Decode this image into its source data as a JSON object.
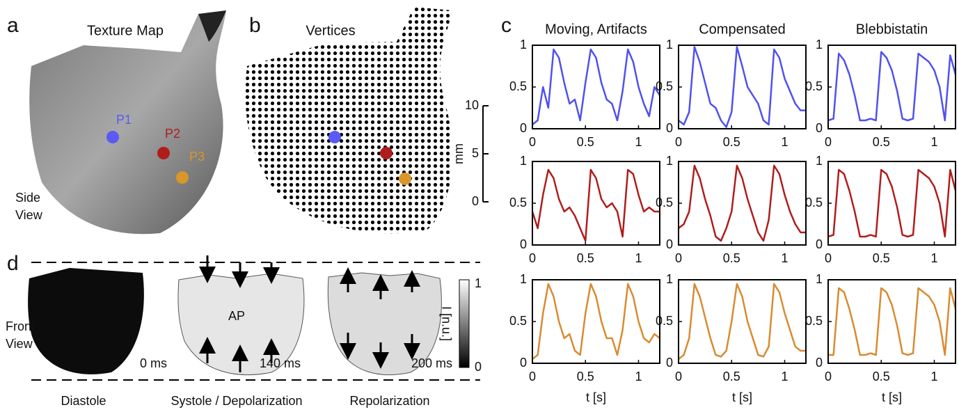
{
  "figure": {
    "panel_labels": [
      "a",
      "b",
      "c",
      "d"
    ],
    "a": {
      "title": "Texture Map",
      "points": [
        "P1",
        "P2",
        "P3"
      ],
      "view": [
        "Side",
        "View"
      ]
    },
    "b": {
      "title": "Vertices",
      "scale_ticks": [
        10,
        5,
        0
      ],
      "scale_unit": "mm"
    },
    "d": {
      "view": [
        "Front",
        "View"
      ],
      "times": [
        "0 ms",
        "140 ms",
        "200 ms"
      ],
      "ap": "AP",
      "phases": [
        "Diastole",
        "Systole / Depolarization",
        "Repolarization"
      ],
      "colorbar_ticks": [
        1,
        0
      ],
      "colorbar_label": "I [n.u.]"
    }
  },
  "chart_data": [
    {
      "type": "line",
      "title": "Moving, Artifacts",
      "x": [
        0,
        0.05,
        0.1,
        0.15,
        0.2,
        0.25,
        0.3,
        0.35,
        0.4,
        0.45,
        0.5,
        0.55,
        0.6,
        0.65,
        0.7,
        0.75,
        0.8,
        0.85,
        0.9,
        0.95,
        1.0,
        1.05,
        1.1,
        1.15,
        1.2
      ],
      "series": [
        {
          "color": "#5050f0",
          "values": [
            0.05,
            0.1,
            0.5,
            0.25,
            0.95,
            0.85,
            0.55,
            0.3,
            0.35,
            0.1,
            0.55,
            0.95,
            0.85,
            0.55,
            0.35,
            0.3,
            0.1,
            0.45,
            0.95,
            0.8,
            0.5,
            0.3,
            0.15,
            0.5,
            0.4
          ]
        }
      ],
      "xlim": [
        0,
        1.2
      ],
      "ylim": [
        0,
        1
      ],
      "xticks": [
        0,
        0.5,
        1
      ],
      "yticks": [
        0,
        0.5,
        1
      ]
    },
    {
      "type": "line",
      "title": "Compensated",
      "x": [
        0,
        0.05,
        0.1,
        0.15,
        0.2,
        0.25,
        0.3,
        0.35,
        0.4,
        0.45,
        0.5,
        0.55,
        0.6,
        0.65,
        0.7,
        0.75,
        0.8,
        0.85,
        0.9,
        0.95,
        1.0,
        1.05,
        1.1,
        1.15,
        1.2
      ],
      "series": [
        {
          "color": "#5050f0",
          "values": [
            0.1,
            0.05,
            0.2,
            0.98,
            0.8,
            0.55,
            0.3,
            0.25,
            0.1,
            0.02,
            0.2,
            0.98,
            0.75,
            0.5,
            0.4,
            0.3,
            0.1,
            0.05,
            0.95,
            0.85,
            0.6,
            0.45,
            0.3,
            0.22,
            0.22
          ]
        }
      ],
      "xlim": [
        0,
        1.2
      ],
      "ylim": [
        0,
        1
      ],
      "xticks": [
        0,
        0.5,
        1
      ],
      "yticks": [
        0,
        0.5,
        1
      ]
    },
    {
      "type": "line",
      "title": "Blebbistatin",
      "x": [
        0,
        0.05,
        0.1,
        0.15,
        0.2,
        0.25,
        0.3,
        0.35,
        0.4,
        0.45,
        0.5,
        0.55,
        0.6,
        0.65,
        0.7,
        0.75,
        0.8,
        0.85,
        0.9,
        0.95,
        1.0,
        1.05,
        1.1,
        1.15,
        1.2
      ],
      "series": [
        {
          "color": "#5050f0",
          "values": [
            0.1,
            0.12,
            0.9,
            0.82,
            0.65,
            0.4,
            0.1,
            0.1,
            0.12,
            0.1,
            0.92,
            0.85,
            0.7,
            0.45,
            0.12,
            0.1,
            0.12,
            0.9,
            0.85,
            0.8,
            0.7,
            0.5,
            0.1,
            0.88,
            0.65
          ]
        }
      ],
      "xlim": [
        0,
        1.2
      ],
      "ylim": [
        0,
        1
      ],
      "xticks": [
        0,
        0.5,
        1
      ],
      "yticks": [
        0,
        0.5,
        1
      ]
    },
    {
      "type": "line",
      "x": [
        0,
        0.05,
        0.1,
        0.15,
        0.2,
        0.25,
        0.3,
        0.35,
        0.4,
        0.45,
        0.5,
        0.55,
        0.6,
        0.65,
        0.7,
        0.75,
        0.8,
        0.85,
        0.9,
        0.95,
        1.0,
        1.05,
        1.1,
        1.15,
        1.2
      ],
      "series": [
        {
          "color": "#b01c1c",
          "values": [
            0.4,
            0.2,
            0.6,
            0.9,
            0.8,
            0.55,
            0.4,
            0.45,
            0.35,
            0.2,
            0.05,
            0.9,
            0.8,
            0.55,
            0.45,
            0.5,
            0.4,
            0.1,
            0.9,
            0.85,
            0.6,
            0.4,
            0.45,
            0.4,
            0.4
          ]
        }
      ],
      "xlim": [
        0,
        1.2
      ],
      "ylim": [
        0,
        1
      ],
      "xticks": [
        0,
        0.5,
        1
      ],
      "yticks": [
        0,
        0.5,
        1
      ]
    },
    {
      "type": "line",
      "x": [
        0,
        0.05,
        0.1,
        0.15,
        0.2,
        0.25,
        0.3,
        0.35,
        0.4,
        0.45,
        0.5,
        0.55,
        0.6,
        0.65,
        0.7,
        0.75,
        0.8,
        0.85,
        0.9,
        0.95,
        1.0,
        1.05,
        1.1,
        1.15,
        1.2
      ],
      "series": [
        {
          "color": "#b01c1c",
          "values": [
            0.2,
            0.25,
            0.4,
            0.95,
            0.8,
            0.55,
            0.35,
            0.1,
            0.05,
            0.2,
            0.4,
            0.95,
            0.8,
            0.55,
            0.35,
            0.15,
            0.05,
            0.3,
            0.95,
            0.85,
            0.6,
            0.4,
            0.25,
            0.15,
            0.15
          ]
        }
      ],
      "xlim": [
        0,
        1.2
      ],
      "ylim": [
        0,
        1
      ],
      "xticks": [
        0,
        0.5,
        1
      ],
      "yticks": [
        0,
        0.5,
        1
      ]
    },
    {
      "type": "line",
      "x": [
        0,
        0.05,
        0.1,
        0.15,
        0.2,
        0.25,
        0.3,
        0.35,
        0.4,
        0.45,
        0.5,
        0.55,
        0.6,
        0.65,
        0.7,
        0.75,
        0.8,
        0.85,
        0.9,
        0.95,
        1.0,
        1.05,
        1.1,
        1.15,
        1.2
      ],
      "series": [
        {
          "color": "#b01c1c",
          "values": [
            0.1,
            0.12,
            0.9,
            0.85,
            0.65,
            0.4,
            0.1,
            0.1,
            0.12,
            0.1,
            0.9,
            0.85,
            0.7,
            0.45,
            0.12,
            0.1,
            0.12,
            0.9,
            0.85,
            0.8,
            0.7,
            0.5,
            0.1,
            0.9,
            0.65
          ]
        }
      ],
      "xlim": [
        0,
        1.2
      ],
      "ylim": [
        0,
        1
      ],
      "xticks": [
        0,
        0.5,
        1
      ],
      "yticks": [
        0,
        0.5,
        1
      ]
    },
    {
      "type": "line",
      "xlabel": "t [s]",
      "x": [
        0,
        0.05,
        0.1,
        0.15,
        0.2,
        0.25,
        0.3,
        0.35,
        0.4,
        0.45,
        0.5,
        0.55,
        0.6,
        0.65,
        0.7,
        0.75,
        0.8,
        0.85,
        0.9,
        0.95,
        1.0,
        1.05,
        1.1,
        1.15,
        1.2
      ],
      "series": [
        {
          "color": "#d98a30",
          "values": [
            0.05,
            0.1,
            0.6,
            0.95,
            0.8,
            0.5,
            0.3,
            0.35,
            0.15,
            0.1,
            0.6,
            0.95,
            0.8,
            0.5,
            0.3,
            0.3,
            0.1,
            0.4,
            0.95,
            0.8,
            0.5,
            0.3,
            0.25,
            0.35,
            0.3
          ]
        }
      ],
      "xlim": [
        0,
        1.2
      ],
      "ylim": [
        0,
        1
      ],
      "xticks": [
        0,
        0.5,
        1
      ],
      "yticks": [
        0,
        0.5,
        1
      ]
    },
    {
      "type": "line",
      "xlabel": "t [s]",
      "x": [
        0,
        0.05,
        0.1,
        0.15,
        0.2,
        0.25,
        0.3,
        0.35,
        0.4,
        0.45,
        0.5,
        0.55,
        0.6,
        0.65,
        0.7,
        0.75,
        0.8,
        0.85,
        0.9,
        0.95,
        1.0,
        1.05,
        1.1,
        1.15,
        1.2
      ],
      "series": [
        {
          "color": "#d98a30",
          "values": [
            0.05,
            0.1,
            0.3,
            0.95,
            0.8,
            0.55,
            0.3,
            0.1,
            0.08,
            0.15,
            0.5,
            0.95,
            0.8,
            0.5,
            0.3,
            0.1,
            0.08,
            0.2,
            0.95,
            0.85,
            0.6,
            0.4,
            0.2,
            0.15,
            0.15
          ]
        }
      ],
      "xlim": [
        0,
        1.2
      ],
      "ylim": [
        0,
        1
      ],
      "xticks": [
        0,
        0.5,
        1
      ],
      "yticks": [
        0,
        0.5,
        1
      ]
    },
    {
      "type": "line",
      "xlabel": "t [s]",
      "x": [
        0,
        0.05,
        0.1,
        0.15,
        0.2,
        0.25,
        0.3,
        0.35,
        0.4,
        0.45,
        0.5,
        0.55,
        0.6,
        0.65,
        0.7,
        0.75,
        0.8,
        0.85,
        0.9,
        0.95,
        1.0,
        1.05,
        1.1,
        1.15,
        1.2
      ],
      "series": [
        {
          "color": "#d98a30",
          "values": [
            0.1,
            0.1,
            0.9,
            0.85,
            0.65,
            0.4,
            0.1,
            0.1,
            0.12,
            0.1,
            0.9,
            0.85,
            0.7,
            0.45,
            0.12,
            0.1,
            0.12,
            0.9,
            0.85,
            0.8,
            0.7,
            0.5,
            0.1,
            0.9,
            0.65
          ]
        }
      ],
      "xlim": [
        0,
        1.2
      ],
      "ylim": [
        0,
        1
      ],
      "xticks": [
        0,
        0.5,
        1
      ],
      "yticks": [
        0,
        0.5,
        1
      ]
    }
  ]
}
